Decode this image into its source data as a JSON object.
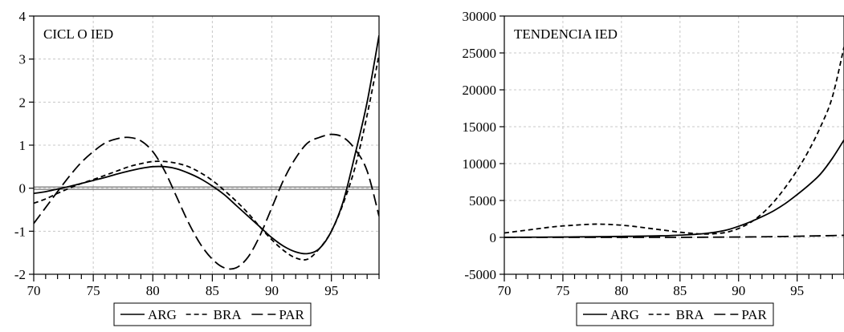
{
  "chart_data": [
    {
      "type": "line",
      "title": "CICL O IED",
      "xlabel": "",
      "ylabel": "",
      "x": [
        70,
        71,
        72,
        73,
        74,
        75,
        76,
        77,
        78,
        79,
        80,
        81,
        82,
        83,
        84,
        85,
        86,
        87,
        88,
        89,
        90,
        91,
        92,
        93,
        94,
        95,
        96,
        97,
        98,
        99
      ],
      "xlim": [
        70,
        99
      ],
      "ylim": [
        -2,
        4
      ],
      "xticks": [
        70,
        75,
        80,
        85,
        90,
        95
      ],
      "xtick_labels": [
        "70",
        "75",
        "80",
        "85",
        "90",
        "95"
      ],
      "yticks": [
        -2,
        -1,
        0,
        1,
        2,
        3,
        4
      ],
      "ytick_labels": [
        "-2",
        "-1",
        "0",
        "1",
        "2",
        "3",
        "4"
      ],
      "grid": true,
      "reference_line": 0,
      "series": [
        {
          "name": "ARG",
          "style": "solid",
          "values": [
            -0.12,
            -0.08,
            -0.02,
            0.04,
            0.11,
            0.18,
            0.25,
            0.33,
            0.4,
            0.46,
            0.5,
            0.5,
            0.45,
            0.35,
            0.22,
            0.05,
            -0.15,
            -0.4,
            -0.65,
            -0.9,
            -1.15,
            -1.35,
            -1.48,
            -1.52,
            -1.4,
            -1.0,
            -0.3,
            0.8,
            2.0,
            3.55
          ]
        },
        {
          "name": "BRA",
          "style": "dashed",
          "values": [
            -0.35,
            -0.25,
            -0.12,
            0.0,
            0.11,
            0.2,
            0.3,
            0.4,
            0.5,
            0.57,
            0.62,
            0.62,
            0.58,
            0.5,
            0.36,
            0.18,
            -0.05,
            -0.3,
            -0.58,
            -0.9,
            -1.2,
            -1.45,
            -1.62,
            -1.65,
            -1.4,
            -1.0,
            -0.35,
            0.5,
            1.7,
            3.1
          ]
        },
        {
          "name": "PAR",
          "style": "longdash",
          "values": [
            -0.82,
            -0.45,
            -0.08,
            0.28,
            0.6,
            0.85,
            1.05,
            1.15,
            1.18,
            1.1,
            0.85,
            0.4,
            -0.2,
            -0.8,
            -1.3,
            -1.65,
            -1.85,
            -1.85,
            -1.6,
            -1.1,
            -0.45,
            0.2,
            0.7,
            1.05,
            1.18,
            1.25,
            1.18,
            0.9,
            0.4,
            -0.65
          ]
        }
      ],
      "legend": [
        "ARG",
        "BRA",
        "PAR"
      ],
      "legend_position": "bottom"
    },
    {
      "type": "line",
      "title": "TENDENCIA IED",
      "xlabel": "",
      "ylabel": "",
      "x": [
        70,
        71,
        72,
        73,
        74,
        75,
        76,
        77,
        78,
        79,
        80,
        81,
        82,
        83,
        84,
        85,
        86,
        87,
        88,
        89,
        90,
        91,
        92,
        93,
        94,
        95,
        96,
        97,
        98,
        99
      ],
      "xlim": [
        70,
        99
      ],
      "ylim": [
        -5000,
        30000
      ],
      "xticks": [
        70,
        75,
        80,
        85,
        90,
        95
      ],
      "xtick_labels": [
        "70",
        "75",
        "80",
        "85",
        "90",
        "95"
      ],
      "yticks": [
        -5000,
        0,
        5000,
        10000,
        15000,
        20000,
        25000,
        30000
      ],
      "ytick_labels": [
        "-5000",
        "0",
        "5000",
        "10000",
        "15000",
        "20000",
        "25000",
        "30000"
      ],
      "grid": true,
      "series": [
        {
          "name": "ARG",
          "style": "solid",
          "values": [
            0,
            10,
            20,
            30,
            40,
            50,
            60,
            75,
            90,
            110,
            130,
            150,
            170,
            200,
            230,
            300,
            380,
            500,
            700,
            1000,
            1500,
            2100,
            2800,
            3600,
            4600,
            5800,
            7100,
            8600,
            10700,
            13200
          ]
        },
        {
          "name": "BRA",
          "style": "dashed",
          "values": [
            600,
            800,
            1000,
            1200,
            1400,
            1550,
            1650,
            1750,
            1800,
            1750,
            1650,
            1500,
            1300,
            1100,
            900,
            700,
            550,
            450,
            500,
            700,
            1200,
            2000,
            3200,
            4800,
            6800,
            9100,
            11800,
            15000,
            19000,
            25800
          ]
        },
        {
          "name": "PAR",
          "style": "longdash",
          "values": [
            0,
            0,
            0,
            0,
            0,
            0,
            0,
            0,
            0,
            0,
            0,
            0,
            0,
            0,
            0,
            0,
            10,
            20,
            30,
            40,
            50,
            60,
            80,
            100,
            120,
            150,
            180,
            210,
            240,
            280
          ]
        }
      ],
      "legend": [
        "ARG",
        "BRA",
        "PAR"
      ],
      "legend_position": "bottom"
    }
  ]
}
